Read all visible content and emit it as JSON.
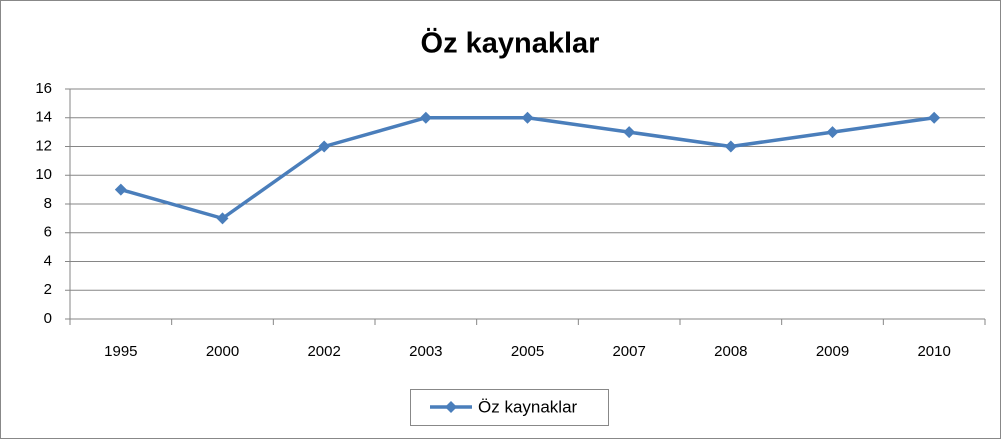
{
  "chart_data": {
    "type": "line",
    "title": "Öz kaynaklar",
    "categories": [
      "1995",
      "2000",
      "2002",
      "2003",
      "2005",
      "2007",
      "2008",
      "2009",
      "2010"
    ],
    "series": [
      {
        "name": "Öz kaynaklar",
        "color": "#4a7ebb",
        "values": [
          9,
          7,
          12,
          14,
          14,
          13,
          12,
          13,
          14
        ]
      }
    ],
    "ylim": [
      0,
      16
    ],
    "yticks": [
      0,
      2,
      4,
      6,
      8,
      10,
      12,
      14,
      16
    ],
    "grid": true,
    "legend": "bottom"
  }
}
